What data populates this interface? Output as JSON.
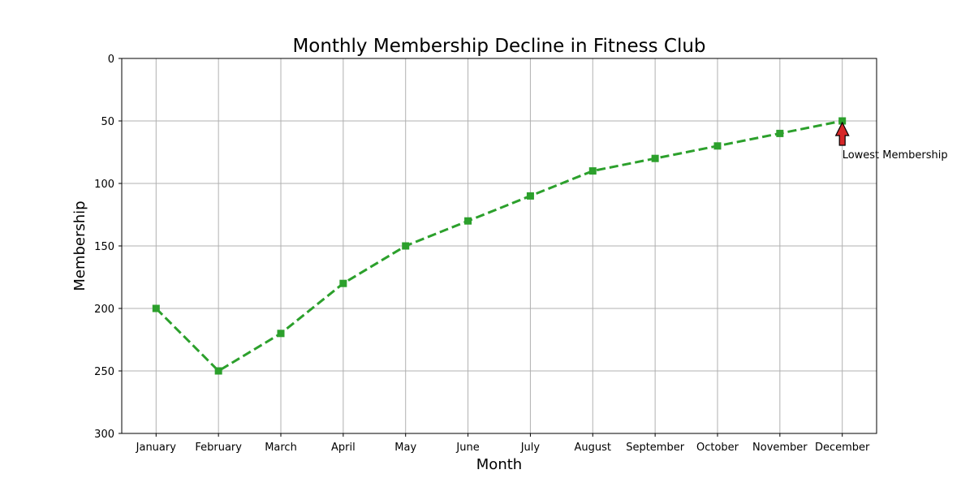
{
  "chart_data": {
    "type": "line",
    "title": "Monthly Membership Decline in Fitness Club",
    "xlabel": "Month",
    "ylabel": "Membership",
    "categories": [
      "January",
      "February",
      "March",
      "April",
      "May",
      "June",
      "July",
      "August",
      "September",
      "October",
      "November",
      "December"
    ],
    "series": [
      {
        "values": [
          200,
          250,
          220,
          180,
          150,
          130,
          110,
          90,
          80,
          70,
          60,
          50
        ]
      }
    ],
    "ylim": [
      300,
      0
    ],
    "y_inverted": true,
    "yticks": [
      "0",
      "50",
      "100",
      "150",
      "200",
      "250",
      "300"
    ],
    "grid": true,
    "line_style": "dashed",
    "marker": "square",
    "line_color": "#2ca02c",
    "annotation": {
      "text": "Lowest Membership",
      "category": "December",
      "value": 50,
      "arrow_color": "#d62728"
    }
  }
}
